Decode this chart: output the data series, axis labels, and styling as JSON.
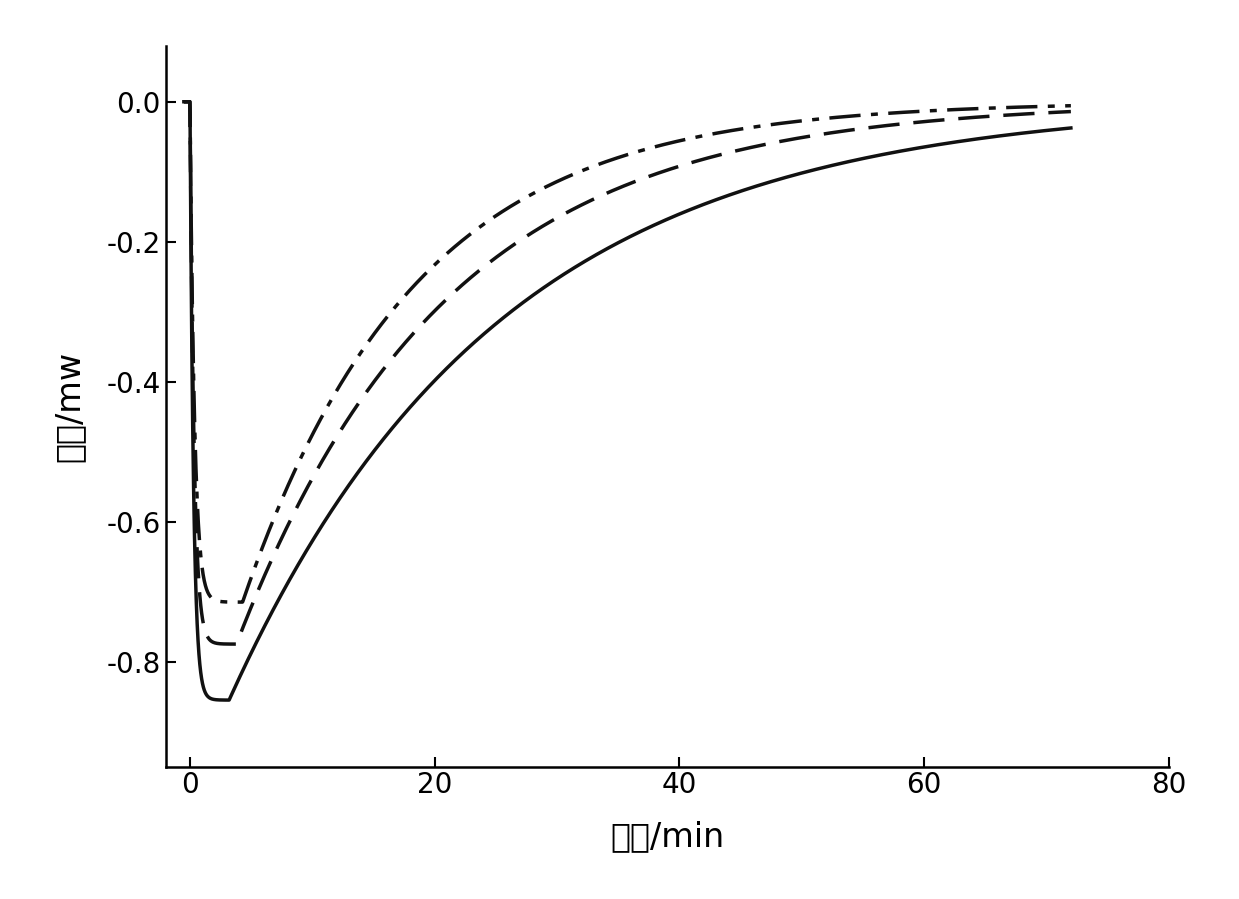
{
  "xlabel": "时间/min",
  "ylabel": "热流/mw",
  "xlim": [
    -2,
    80
  ],
  "ylim": [
    -0.95,
    0.08
  ],
  "xticks": [
    0,
    20,
    40,
    60,
    80
  ],
  "yticks": [
    0.0,
    -0.2,
    -0.4,
    -0.6,
    -0.8
  ],
  "background_color": "#ffffff",
  "line_color": "#111111",
  "curves": [
    {
      "style": "solid",
      "linewidth": 2.5,
      "peak_time": 3.2,
      "peak_val": -0.855,
      "rise_rate": 3.5,
      "decay_tau": 22.0
    },
    {
      "style": "dashed",
      "linewidth": 2.5,
      "peak_time": 3.8,
      "peak_val": -0.775,
      "rise_rate": 3.0,
      "decay_tau": 17.0
    },
    {
      "style": "dashdot",
      "linewidth": 2.5,
      "peak_time": 4.3,
      "peak_val": -0.715,
      "rise_rate": 2.7,
      "decay_tau": 14.0
    }
  ],
  "axis_linewidth": 1.8,
  "tick_fontsize": 20,
  "label_fontsize": 24
}
